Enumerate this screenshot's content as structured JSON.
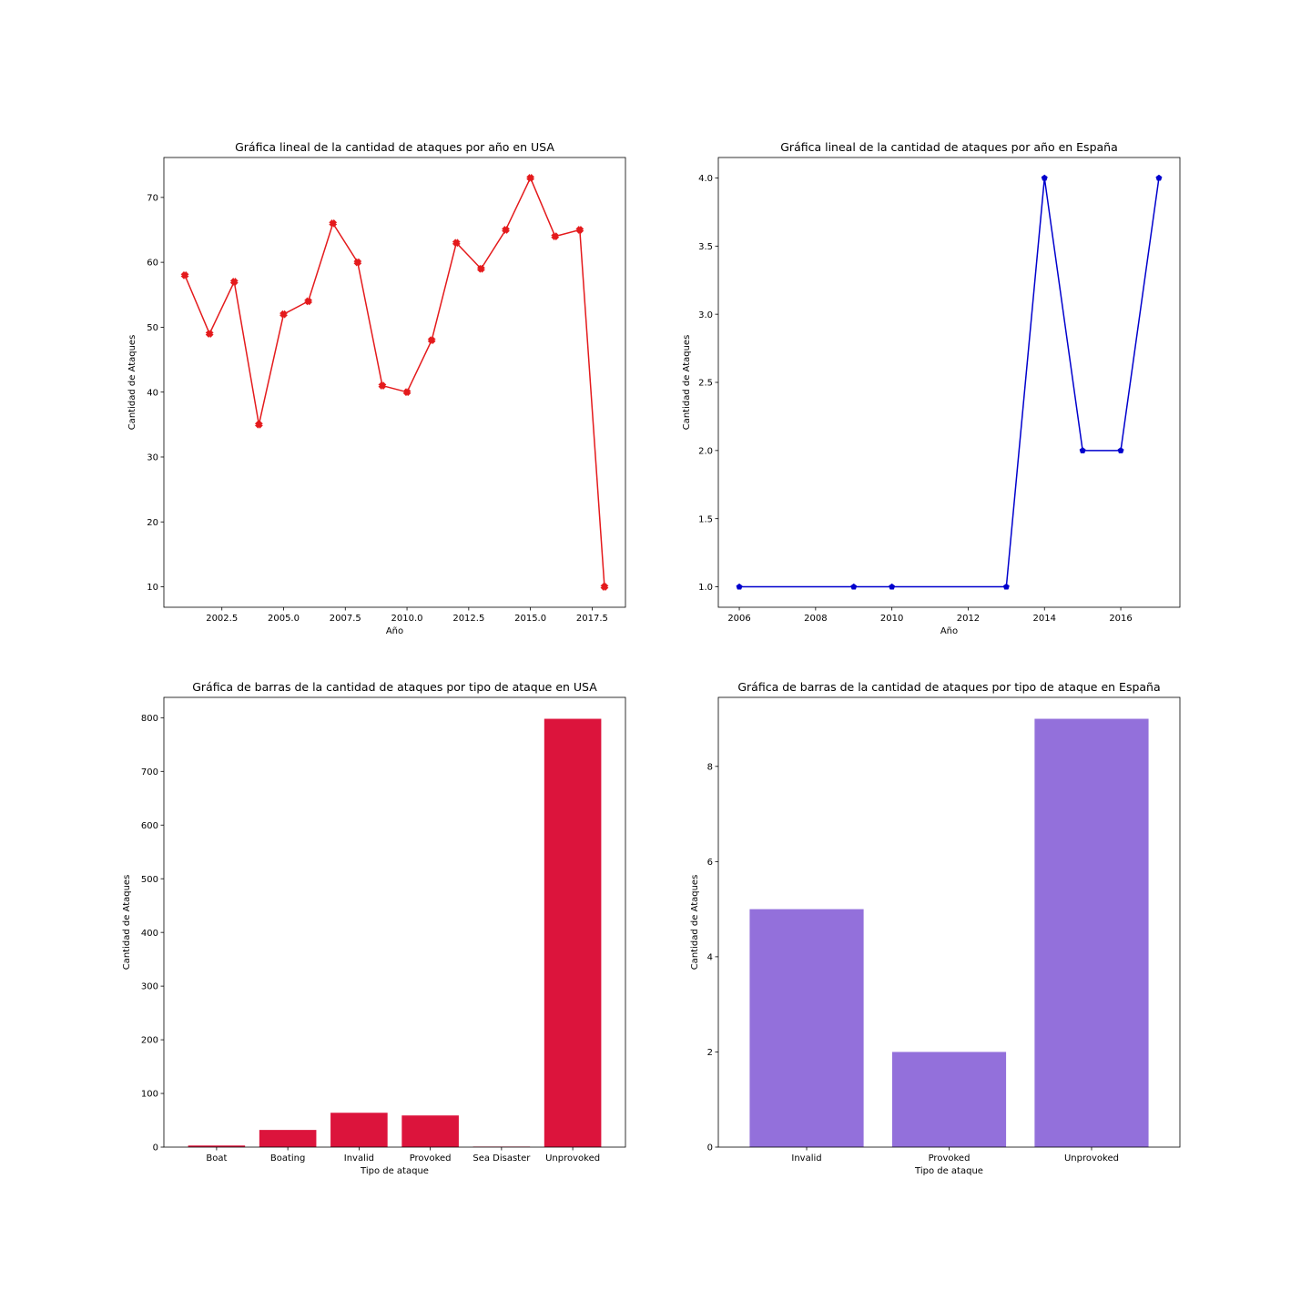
{
  "chart_data": [
    {
      "type": "line",
      "title": "Gráfica lineal de la cantidad de ataques por año en USA",
      "xlabel": "Año",
      "ylabel": "Cantidad de Ataques",
      "color": "#e41a1c",
      "marker": "X",
      "xlim": [
        2000.15,
        2018.85
      ],
      "ylim": [
        6.85,
        76.15
      ],
      "xticks": [
        2002.5,
        2005.0,
        2007.5,
        2010.0,
        2012.5,
        2015.0,
        2017.5
      ],
      "xtick_labels": [
        "2002.5",
        "2005.0",
        "2007.5",
        "2010.0",
        "2012.5",
        "2015.0",
        "2017.5"
      ],
      "yticks": [
        10,
        20,
        30,
        40,
        50,
        60,
        70
      ],
      "ytick_labels": [
        "10",
        "20",
        "30",
        "40",
        "50",
        "60",
        "70"
      ],
      "x": [
        2001,
        2002,
        2003,
        2004,
        2005,
        2006,
        2007,
        2008,
        2009,
        2010,
        2011,
        2012,
        2013,
        2014,
        2015,
        2016,
        2017,
        2018
      ],
      "y": [
        58,
        49,
        57,
        35,
        52,
        54,
        66,
        60,
        41,
        40,
        48,
        63,
        59,
        65,
        73,
        64,
        65,
        10
      ],
      "grid": false
    },
    {
      "type": "line",
      "title": "Gráfica lineal de la cantidad de ataques por año en España",
      "xlabel": "Año",
      "ylabel": "Cantidad de Ataques",
      "color": "#0000cd",
      "marker": "p",
      "xlim": [
        2005.45,
        2017.55
      ],
      "ylim": [
        0.85,
        4.15
      ],
      "xticks": [
        2006,
        2008,
        2010,
        2012,
        2014,
        2016
      ],
      "xtick_labels": [
        "2006",
        "2008",
        "2010",
        "2012",
        "2014",
        "2016"
      ],
      "yticks": [
        1.0,
        1.5,
        2.0,
        2.5,
        3.0,
        3.5,
        4.0
      ],
      "ytick_labels": [
        "1.0",
        "1.5",
        "2.0",
        "2.5",
        "3.0",
        "3.5",
        "4.0"
      ],
      "x": [
        2006,
        2009,
        2010,
        2013,
        2014,
        2015,
        2016,
        2017
      ],
      "y": [
        1,
        1,
        1,
        1,
        4,
        2,
        2,
        4
      ],
      "grid": false
    },
    {
      "type": "bar",
      "title": "Gráfica de barras de la cantidad de ataques por tipo de ataque en USA",
      "xlabel": "Tipo de ataque",
      "ylabel": "Cantidad de Ataques",
      "color": "#dc143c",
      "categories": [
        "Boat",
        "Boating",
        "Invalid",
        "Provoked",
        "Sea Disaster",
        "Unprovoked"
      ],
      "values": [
        3,
        32,
        64,
        59,
        1,
        798
      ],
      "ylim": [
        0,
        837.9
      ],
      "yticks": [
        0,
        100,
        200,
        300,
        400,
        500,
        600,
        700,
        800
      ],
      "ytick_labels": [
        "0",
        "100",
        "200",
        "300",
        "400",
        "500",
        "600",
        "700",
        "800"
      ],
      "grid": false
    },
    {
      "type": "bar",
      "title": "Gráfica de barras de la cantidad de ataques por tipo de ataque en España",
      "xlabel": "Tipo de ataque",
      "ylabel": "Cantidad de Ataques",
      "color": "#9370db",
      "categories": [
        "Invalid",
        "Provoked",
        "Unprovoked"
      ],
      "values": [
        5,
        2,
        9
      ],
      "ylim": [
        0,
        9.45
      ],
      "yticks": [
        0,
        2,
        4,
        6,
        8
      ],
      "ytick_labels": [
        "0",
        "2",
        "4",
        "6",
        "8"
      ],
      "grid": false
    }
  ]
}
